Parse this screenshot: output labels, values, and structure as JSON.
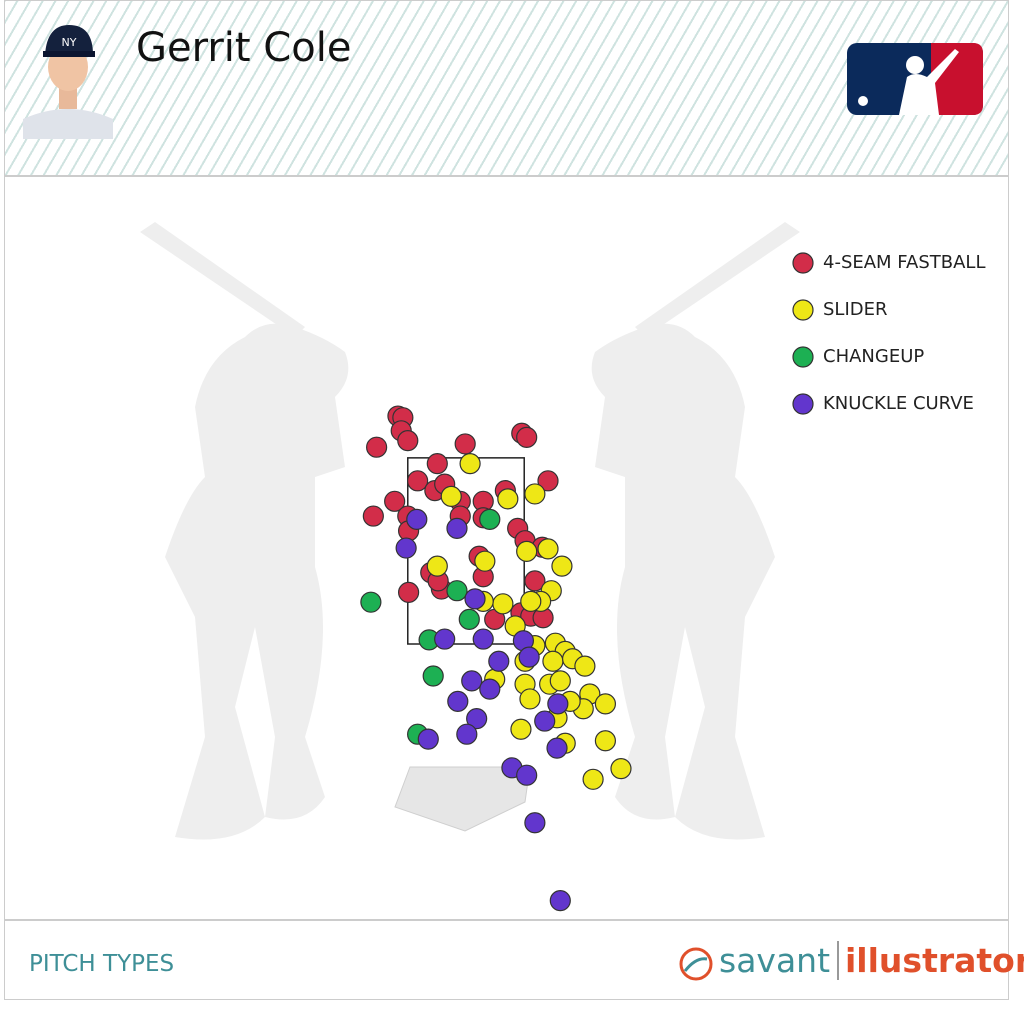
{
  "player": "Gerrit Cole",
  "footer": {
    "label": "PITCH TYPES",
    "brand": "savant",
    "brand2": "illustrator"
  },
  "chart_data": {
    "type": "scatter",
    "xlim": [
      -4,
      4
    ],
    "ylim": [
      -2,
      5.5
    ],
    "strike_zone": {
      "x": [
        -0.71,
        0.71
      ],
      "z": [
        1.5,
        3.77
      ]
    },
    "series": [
      {
        "name": "4-SEAM FASTBALL",
        "color": "#d22d49",
        "x": [
          -0.83,
          -0.77,
          -0.79,
          -0.71,
          -1.09,
          -0.01,
          0.68,
          0.74,
          -0.35,
          -0.59,
          -0.38,
          -0.26,
          -0.07,
          0.21,
          0.48,
          1.0,
          -1.13,
          -0.87,
          -0.71,
          -0.07,
          0.21,
          0.63,
          0.72,
          0.93,
          -0.7,
          0.16,
          0.21,
          -0.43,
          -0.3,
          -0.34,
          -0.7,
          0.84,
          0.35,
          0.67,
          0.79,
          0.94
        ],
        "values": [
          4.28,
          4.26,
          4.1,
          3.98,
          3.9,
          3.94,
          4.07,
          4.02,
          3.7,
          3.49,
          3.37,
          3.45,
          3.24,
          3.24,
          3.37,
          3.49,
          3.06,
          3.24,
          3.06,
          3.06,
          3.04,
          2.91,
          2.76,
          2.68,
          2.88,
          2.57,
          2.32,
          2.37,
          2.17,
          2.27,
          2.13,
          2.27,
          1.8,
          1.88,
          1.84,
          1.82
        ]
      },
      {
        "name": "SLIDER",
        "color": "#eee716",
        "x": [
          0.05,
          -0.18,
          0.51,
          0.84,
          1.0,
          0.74,
          1.17,
          0.23,
          -0.35,
          1.04,
          0.91,
          0.45,
          0.21,
          0.6,
          0.79,
          1.09,
          1.21,
          0.84,
          0.72,
          1.06,
          1.3,
          1.45,
          0.35,
          0.72,
          1.02,
          1.15,
          1.51,
          1.7,
          1.43,
          1.27,
          0.78,
          1.11,
          0.67,
          1.7,
          1.21,
          1.89,
          1.55
        ],
        "values": [
          3.7,
          3.3,
          3.27,
          3.33,
          2.66,
          2.63,
          2.45,
          2.51,
          2.45,
          2.15,
          2.02,
          1.99,
          2.02,
          1.72,
          2.02,
          1.51,
          1.41,
          1.48,
          1.29,
          1.29,
          1.32,
          1.23,
          1.07,
          1.01,
          1.01,
          1.05,
          0.89,
          0.77,
          0.71,
          0.8,
          0.83,
          0.6,
          0.46,
          0.32,
          0.29,
          -0.02,
          -0.15
        ]
      },
      {
        "name": "CHANGEUP",
        "color": "#1db053",
        "x": [
          -1.16,
          -0.11,
          0.04,
          -0.45,
          -0.4,
          -0.59,
          0.29
        ],
        "values": [
          2.01,
          2.15,
          1.8,
          1.55,
          1.11,
          0.4,
          3.02
        ]
      },
      {
        "name": "KNUCKLE CURVE",
        "color": "#6236cd",
        "x": [
          -0.6,
          -0.11,
          -0.73,
          0.11,
          -0.26,
          0.21,
          0.7,
          0.4,
          0.77,
          0.07,
          0.29,
          -0.1,
          1.12,
          0.13,
          0.96,
          0.01,
          -0.46,
          1.11,
          0.56,
          0.74,
          0.84,
          1.15
        ],
        "values": [
          3.02,
          2.91,
          2.67,
          2.05,
          1.56,
          1.56,
          1.54,
          1.29,
          1.34,
          1.05,
          0.95,
          0.8,
          0.77,
          0.59,
          0.56,
          0.4,
          0.34,
          0.23,
          -0.01,
          -0.1,
          -0.68,
          -1.63
        ]
      }
    ]
  }
}
